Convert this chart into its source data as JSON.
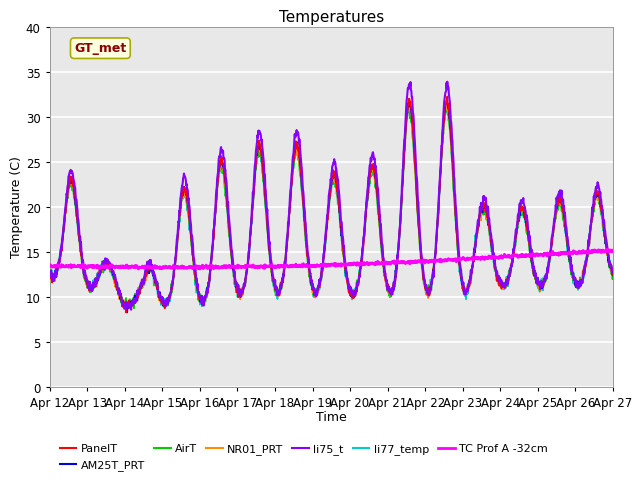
{
  "title": "Temperatures",
  "xlabel": "Time",
  "ylabel": "Temperature (C)",
  "ylim": [
    0,
    40
  ],
  "x_tick_labels": [
    "Apr 12",
    "Apr 13",
    "Apr 14",
    "Apr 15",
    "Apr 16",
    "Apr 17",
    "Apr 18",
    "Apr 19",
    "Apr 20",
    "Apr 21",
    "Apr 22",
    "Apr 23",
    "Apr 24",
    "Apr 25",
    "Apr 26",
    "Apr 27"
  ],
  "annotation_text": "GT_met",
  "annotation_color": "#8B0000",
  "annotation_bg": "#FFFFE0",
  "annotation_edge": "#AAAA00",
  "series_colors": {
    "PanelT": "#FF0000",
    "AM25T_PRT": "#0000DD",
    "AirT": "#00CC00",
    "NR01_PRT": "#FF8C00",
    "li75_t": "#8800FF",
    "li77_temp": "#00CCCC",
    "TC Prof A -32cm": "#FF00FF"
  },
  "bg_color": "#E8E8E8",
  "grid_color": "#FFFFFF",
  "title_fontsize": 11,
  "label_fontsize": 9,
  "tick_fontsize": 8.5,
  "legend_fontsize": 8.0
}
